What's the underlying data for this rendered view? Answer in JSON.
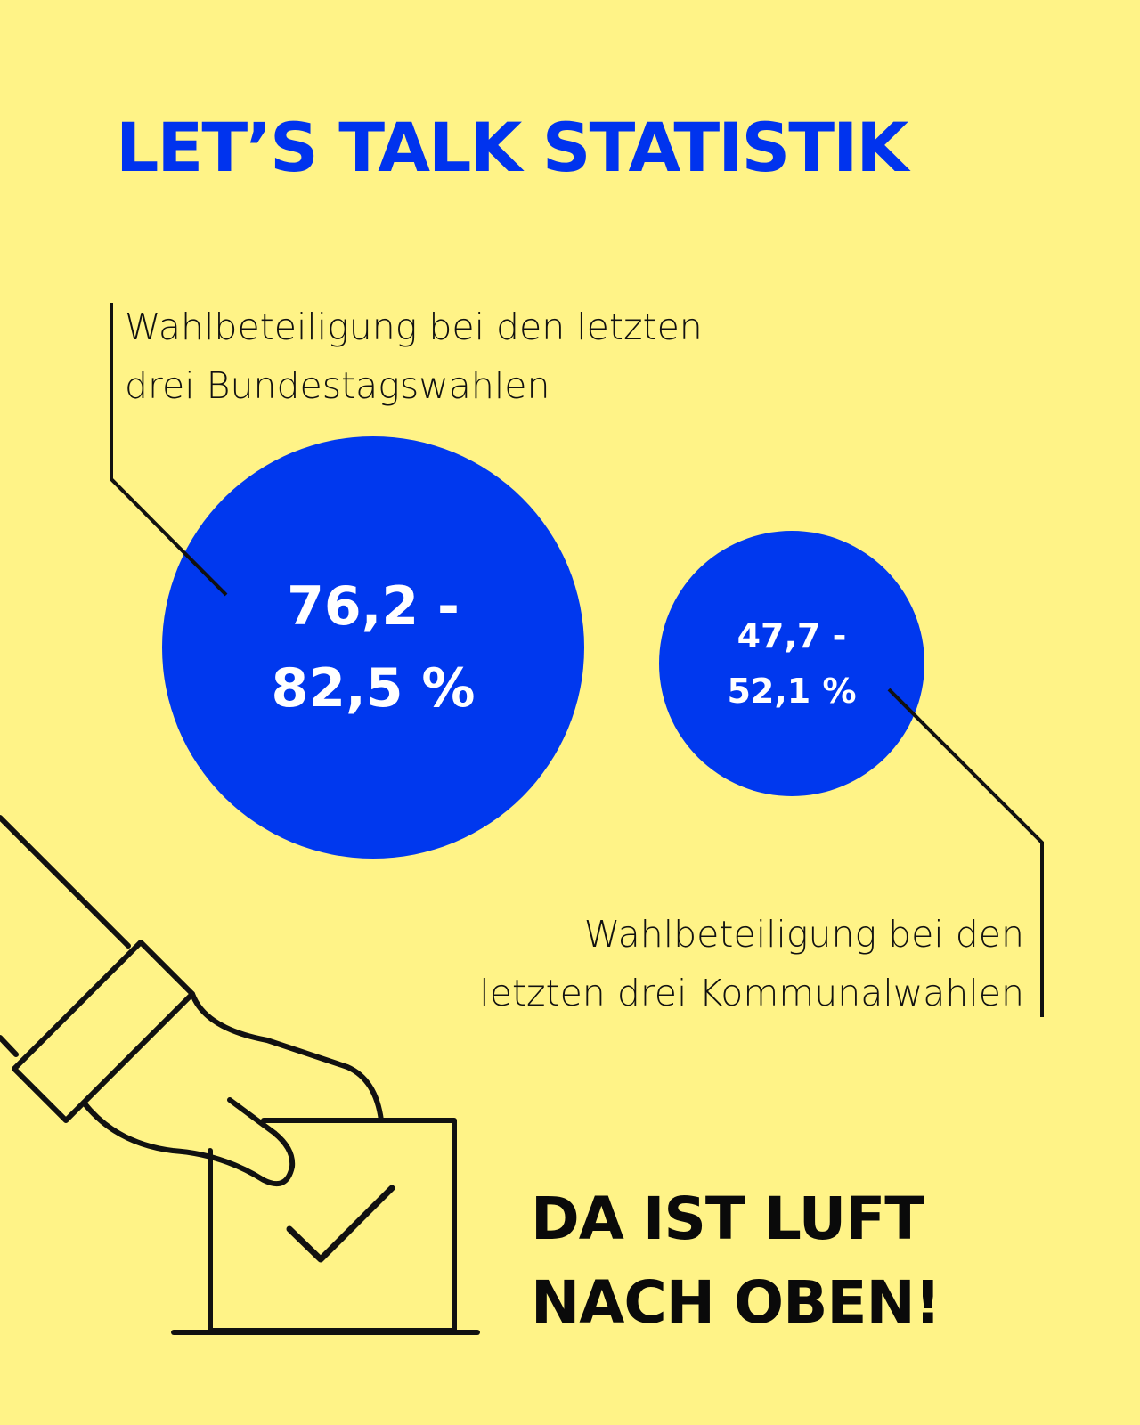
{
  "headline": "LET’S TALK STATISTIK",
  "bundestag": {
    "label_line1": "Wahlbeteiligung bei den letzten",
    "label_line2": "drei Bundestagswahlen",
    "value_line1": "76,2 -",
    "value_line2": "82,5 %",
    "range_percent": [
      76.2,
      82.5
    ]
  },
  "kommunal": {
    "label_line1": "Wahlbeteiligung bei den",
    "label_line2": "letzten drei Kommunalwahlen",
    "value_line1": "47,7 -",
    "value_line2": "52,1 %",
    "range_percent": [
      47.7,
      52.1
    ]
  },
  "cta": {
    "line1": "DA IST LUFT",
    "line2": "NACH OBEN!"
  },
  "icons": [
    "hand-ballot-box-icon",
    "checkmark-icon"
  ],
  "colors": {
    "background": "#fff387",
    "accent_blue": "#0038ee",
    "text_dark": "#111111",
    "circle_text": "#ffffff"
  }
}
